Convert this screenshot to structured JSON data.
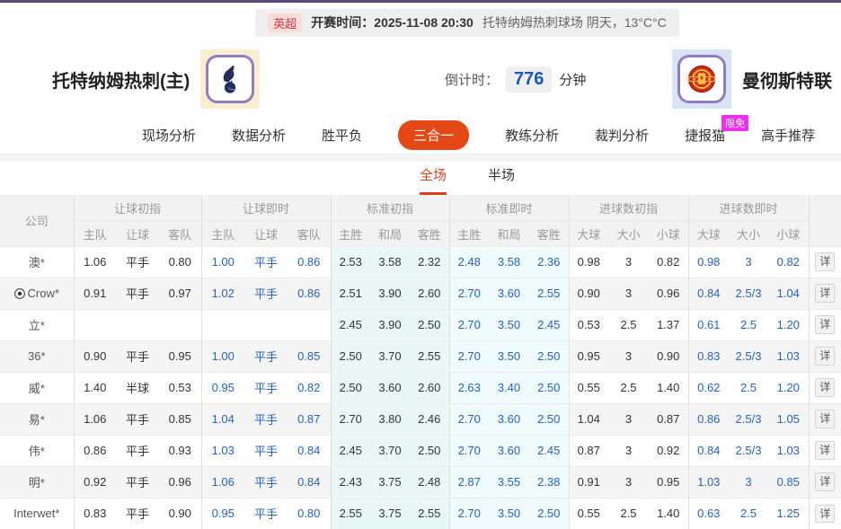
{
  "colors": {
    "top_accent": "#5a4b79",
    "league_red": "#d6363b",
    "nav_active": "#e54817",
    "badge_magenta": "#ee2fee",
    "tab_red": "#d9411e",
    "odds_live_blue": "#2563bf",
    "countdown_blue": "#1a56bb",
    "std_init_bg": "#e9f8f5",
    "std_live_bg": "#f0fbfe"
  },
  "top_bar": {
    "league": "英超",
    "kickoff": "开赛时间：2025-11-08 20:30",
    "venue_weather": "托特纳姆热刺球场  阴天，13°C°C"
  },
  "match": {
    "home_name": "托特纳姆热刺(主)",
    "away_name": "曼彻斯特联",
    "home_crest": "tottenham-crest",
    "away_crest": "man-utd-crest",
    "countdown_label": "倒计时：",
    "countdown_value": "776",
    "countdown_unit": "分钟"
  },
  "nav": {
    "items": [
      {
        "id": "live-analysis",
        "label": "现场分析"
      },
      {
        "id": "data-analysis",
        "label": "数据分析"
      },
      {
        "id": "win-draw-lose",
        "label": "胜平负"
      },
      {
        "id": "three-in-one",
        "label": "三合一",
        "active": true
      },
      {
        "id": "coach-analysis",
        "label": "教练分析"
      },
      {
        "id": "referee-analysis",
        "label": "裁判分析"
      },
      {
        "id": "jiebao-cat",
        "label": "捷报猫",
        "badge": "限免"
      },
      {
        "id": "expert-picks",
        "label": "高手推荐"
      }
    ]
  },
  "period_tabs": [
    {
      "id": "full-time",
      "label": "全场",
      "active": true
    },
    {
      "id": "half-time",
      "label": "半场"
    }
  ],
  "odds_table": {
    "company_header": "公司",
    "detail_label": "详",
    "groups": [
      {
        "key": "handicap_init",
        "label": "让球初指",
        "cols": [
          "主队",
          "让球",
          "客队"
        ]
      },
      {
        "key": "handicap_live",
        "label": "让球即时",
        "cols": [
          "主队",
          "让球",
          "客队"
        ]
      },
      {
        "key": "std_init",
        "label": "标准初指",
        "cols": [
          "主胜",
          "和局",
          "客胜"
        ]
      },
      {
        "key": "std_live",
        "label": "标准即时",
        "cols": [
          "主胜",
          "和局",
          "客胜"
        ]
      },
      {
        "key": "goals_init",
        "label": "进球数初指",
        "cols": [
          "大球",
          "大小",
          "小球"
        ]
      },
      {
        "key": "goals_live",
        "label": "进球数即时",
        "cols": [
          "大球",
          "大小",
          "小球"
        ]
      }
    ],
    "rows": [
      {
        "company": "澳*",
        "icon": false,
        "handicap_init": [
          "1.06",
          "平手",
          "0.80"
        ],
        "handicap_live": [
          "1.00",
          "平手",
          "0.86"
        ],
        "std_init": [
          "2.53",
          "3.58",
          "2.32"
        ],
        "std_live": [
          "2.48",
          "3.58",
          "2.36"
        ],
        "goals_init": [
          "0.98",
          "3",
          "0.82"
        ],
        "goals_live": [
          "0.98",
          "3",
          "0.82"
        ]
      },
      {
        "company": "Crow*",
        "icon": true,
        "handicap_init": [
          "0.91",
          "平手",
          "0.97"
        ],
        "handicap_live": [
          "1.02",
          "平手",
          "0.86"
        ],
        "std_init": [
          "2.51",
          "3.90",
          "2.60"
        ],
        "std_live": [
          "2.70",
          "3.60",
          "2.55"
        ],
        "goals_init": [
          "0.90",
          "3",
          "0.96"
        ],
        "goals_live": [
          "0.84",
          "2.5/3",
          "1.04"
        ]
      },
      {
        "company": "立*",
        "icon": false,
        "handicap_init": [
          "",
          "",
          ""
        ],
        "handicap_live": [
          "",
          "",
          ""
        ],
        "std_init": [
          "2.45",
          "3.90",
          "2.50"
        ],
        "std_live": [
          "2.70",
          "3.50",
          "2.45"
        ],
        "goals_init": [
          "0.53",
          "2.5",
          "1.37"
        ],
        "goals_live": [
          "0.61",
          "2.5",
          "1.20"
        ]
      },
      {
        "company": "36*",
        "icon": false,
        "handicap_init": [
          "0.90",
          "平手",
          "0.95"
        ],
        "handicap_live": [
          "1.00",
          "平手",
          "0.85"
        ],
        "std_init": [
          "2.50",
          "3.70",
          "2.55"
        ],
        "std_live": [
          "2.70",
          "3.50",
          "2.50"
        ],
        "goals_init": [
          "0.95",
          "3",
          "0.90"
        ],
        "goals_live": [
          "0.83",
          "2.5/3",
          "1.03"
        ]
      },
      {
        "company": "威*",
        "icon": false,
        "handicap_init": [
          "1.40",
          "半球",
          "0.53"
        ],
        "handicap_live": [
          "0.95",
          "平手",
          "0.82"
        ],
        "std_init": [
          "2.50",
          "3.60",
          "2.60"
        ],
        "std_live": [
          "2.63",
          "3.40",
          "2.50"
        ],
        "goals_init": [
          "0.55",
          "2.5",
          "1.40"
        ],
        "goals_live": [
          "0.62",
          "2.5",
          "1.20"
        ]
      },
      {
        "company": "易*",
        "icon": false,
        "handicap_init": [
          "1.06",
          "平手",
          "0.85"
        ],
        "handicap_live": [
          "1.04",
          "平手",
          "0.87"
        ],
        "std_init": [
          "2.70",
          "3.80",
          "2.46"
        ],
        "std_live": [
          "2.70",
          "3.60",
          "2.50"
        ],
        "goals_init": [
          "1.04",
          "3",
          "0.87"
        ],
        "goals_live": [
          "0.86",
          "2.5/3",
          "1.05"
        ]
      },
      {
        "company": "伟*",
        "icon": false,
        "handicap_init": [
          "0.86",
          "平手",
          "0.93"
        ],
        "handicap_live": [
          "1.03",
          "平手",
          "0.84"
        ],
        "std_init": [
          "2.45",
          "3.70",
          "2.50"
        ],
        "std_live": [
          "2.70",
          "3.60",
          "2.45"
        ],
        "goals_init": [
          "0.87",
          "3",
          "0.92"
        ],
        "goals_live": [
          "0.84",
          "2.5/3",
          "1.03"
        ]
      },
      {
        "company": "明*",
        "icon": false,
        "handicap_init": [
          "0.92",
          "平手",
          "0.96"
        ],
        "handicap_live": [
          "1.06",
          "平手",
          "0.84"
        ],
        "std_init": [
          "2.43",
          "3.75",
          "2.48"
        ],
        "std_live": [
          "2.87",
          "3.55",
          "2.38"
        ],
        "goals_init": [
          "0.91",
          "3",
          "0.95"
        ],
        "goals_live": [
          "1.03",
          "3",
          "0.85"
        ]
      },
      {
        "company": "Interwet*",
        "icon": false,
        "handicap_init": [
          "0.83",
          "平手",
          "0.90"
        ],
        "handicap_live": [
          "0.95",
          "平手",
          "0.80"
        ],
        "std_init": [
          "2.55",
          "3.75",
          "2.55"
        ],
        "std_live": [
          "2.70",
          "3.50",
          "2.50"
        ],
        "goals_init": [
          "0.55",
          "2.5",
          "1.40"
        ],
        "goals_live": [
          "0.63",
          "2.5",
          "1.25"
        ]
      }
    ]
  }
}
